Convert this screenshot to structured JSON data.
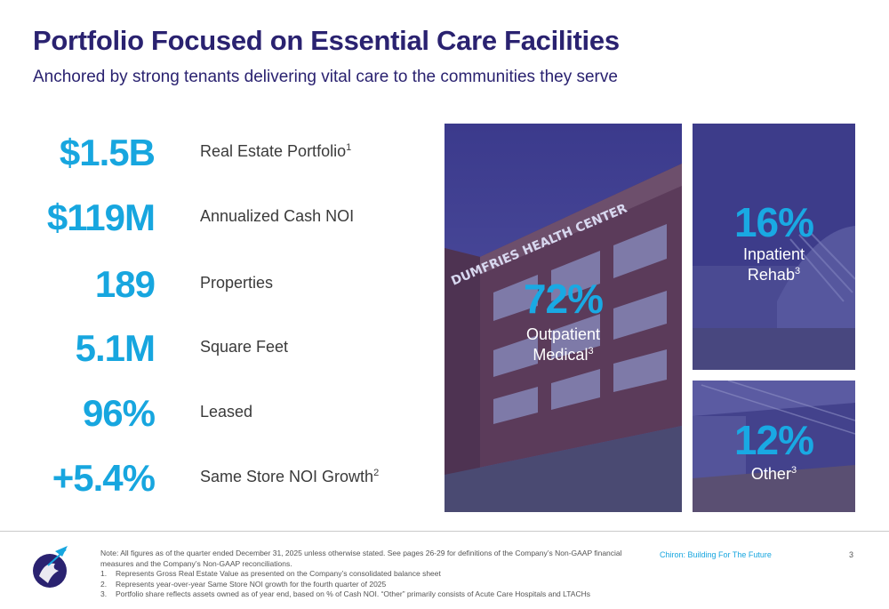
{
  "header": {
    "title": "Portfolio Focused on Essential Care Facilities",
    "subtitle": "Anchored by strong tenants delivering vital care to the communities they serve"
  },
  "stats": [
    {
      "value": "$1.5B",
      "label": "Real Estate Portfolio",
      "sup": "1"
    },
    {
      "value": "$119M",
      "label": "Annualized Cash NOI",
      "sup": ""
    },
    {
      "value": "189",
      "label": "Properties",
      "sup": ""
    },
    {
      "value": "5.1M",
      "label": "Square Feet",
      "sup": ""
    },
    {
      "value": "96%",
      "label": "Leased",
      "sup": ""
    },
    {
      "value": "+5.4%",
      "label": "Same Store NOI Growth",
      "sup": "2"
    }
  ],
  "mix": {
    "outpatient": {
      "pct": "72%",
      "line1": "Outpatient",
      "line2": "Medical",
      "sup": "3",
      "sign": "DUMFRIES HEALTH CENTER"
    },
    "rehab": {
      "pct": "16%",
      "line1": "Inpatient",
      "line2": "Rehab",
      "sup": "3"
    },
    "other": {
      "pct": "12%",
      "line1": "Other",
      "sup": "3"
    }
  },
  "footer": {
    "note": "Note: All figures as of the quarter ended December 31, 2025 unless otherwise stated. See pages 26-29 for definitions of the Company’s Non-GAAP financial measures and the Company’s Non-GAAP reconciliations.",
    "footnotes": [
      {
        "n": "1.",
        "text": "Represents Gross Real Estate Value as presented on the Company’s consolidated balance sheet"
      },
      {
        "n": "2.",
        "text": "Represents year-over-year Same Store NOI growth for the fourth quarter of 2025"
      },
      {
        "n": "3.",
        "text": "Portfolio share reflects assets owned as of year end, based on % of Cash NOI. “Other” primarily consists of Acute Care Hospitals and LTACHs"
      }
    ],
    "tagline": "Chiron: Building For The Future",
    "page": "3"
  },
  "colors": {
    "navy": "#2a2270",
    "accent": "#17a6df"
  }
}
